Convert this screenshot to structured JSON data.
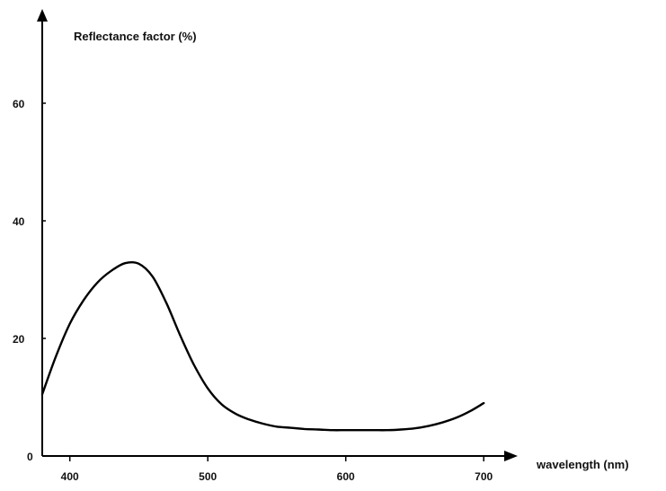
{
  "chart_data": {
    "type": "line",
    "ylabel": "Reflectance factor (%)",
    "xlabel": "wavelength (nm)",
    "xlim": [
      380,
      700
    ],
    "ylim": [
      0,
      70
    ],
    "x_ticks": [
      400,
      500,
      600,
      700
    ],
    "y_ticks": [
      0,
      20,
      40,
      60
    ],
    "grid": false,
    "series": [
      {
        "x": [
          380,
          390,
          400,
          410,
          420,
          430,
          440,
          450,
          460,
          470,
          480,
          490,
          500,
          510,
          520,
          530,
          540,
          550,
          560,
          570,
          580,
          590,
          600,
          610,
          620,
          630,
          640,
          650,
          660,
          670,
          680,
          690,
          700
        ],
        "y": [
          10.5,
          17,
          22.5,
          26.5,
          29.5,
          31.5,
          32.8,
          32.7,
          30.5,
          26,
          20.5,
          15.5,
          11.5,
          8.8,
          7.2,
          6.2,
          5.5,
          5,
          4.8,
          4.6,
          4.5,
          4.4,
          4.4,
          4.4,
          4.4,
          4.4,
          4.5,
          4.7,
          5.1,
          5.7,
          6.5,
          7.6,
          9
        ]
      }
    ],
    "line_color": "#000000"
  }
}
